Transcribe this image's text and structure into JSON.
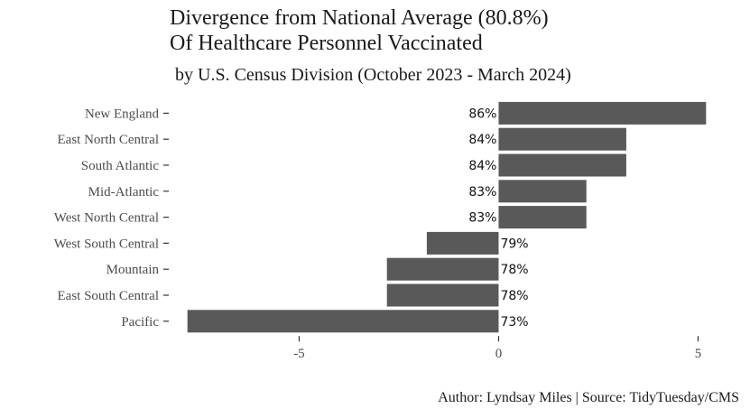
{
  "chart_data": {
    "type": "bar",
    "orientation": "horizontal",
    "title_line1": "Divergence from National Average (80.8%)",
    "title_line2": "Of Healthcare Personnel Vaccinated",
    "subtitle": "by U.S. Census Division (October 2023 - March 2024)",
    "caption": "Author: Lyndsay Miles | Source: TidyTuesday/CMS",
    "xlabel": "",
    "ylabel": "",
    "categories": [
      "New England",
      "East North Central",
      "South Atlantic",
      "Mid-Atlantic",
      "West North Central",
      "West South Central",
      "Mountain",
      "East South Central",
      "Pacific"
    ],
    "values": [
      5.2,
      3.2,
      3.2,
      2.2,
      2.2,
      -1.8,
      -2.8,
      -2.8,
      -7.8
    ],
    "data_labels": [
      "86%",
      "84%",
      "84%",
      "83%",
      "83%",
      "79%",
      "78%",
      "78%",
      "73%"
    ],
    "xlim": [
      -8.2,
      5.6
    ],
    "x_ticks": [
      -5,
      0,
      5
    ],
    "x_tick_labels": [
      "-5",
      "0",
      "5"
    ],
    "grid": false,
    "bar_color": "#595959",
    "text_color": "#4d4d4d"
  }
}
